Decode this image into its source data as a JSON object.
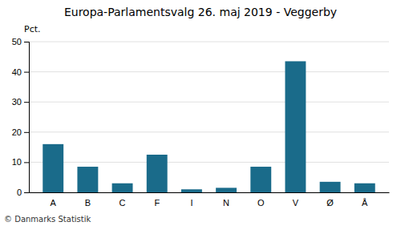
{
  "chart_data": {
    "type": "bar",
    "title": "Europa-Parlamentsvalg 26. maj 2019 - Veggerby",
    "categories": [
      "A",
      "B",
      "C",
      "F",
      "I",
      "N",
      "O",
      "V",
      "Ø",
      "Å"
    ],
    "values": [
      16.0,
      8.5,
      3.0,
      12.5,
      1.0,
      1.5,
      8.5,
      43.5,
      3.5,
      3.0
    ],
    "color": "#1a6b8a",
    "ylabel": "Pct.",
    "ylim": [
      0,
      50
    ],
    "yticks": [
      0,
      10,
      20,
      30,
      40,
      50
    ],
    "grid": true,
    "footer": "© Danmarks Statistik"
  }
}
